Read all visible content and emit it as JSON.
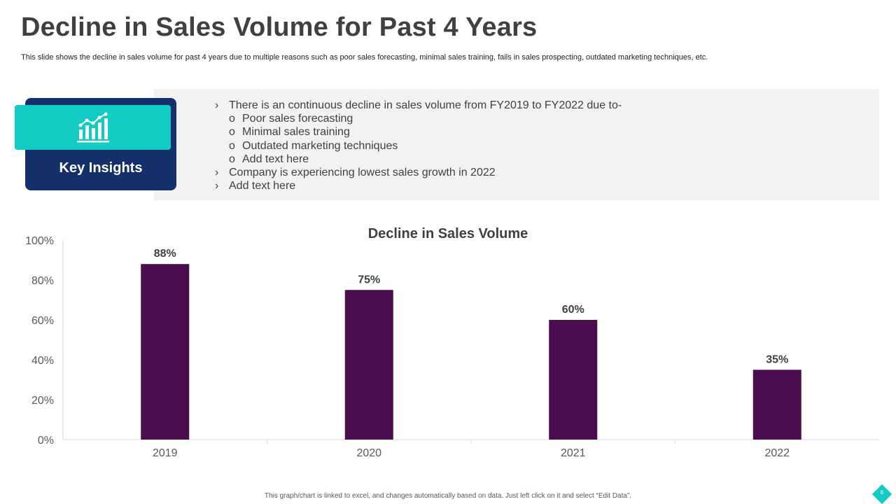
{
  "page": {
    "title": "Decline in Sales Volume for Past 4 Years",
    "subtitle": "This slide shows the decline in sales volume for past 4 years due to multiple reasons such as poor sales forecasting, minimal sales training, fails in sales prospecting, outdated marketing techniques, etc.",
    "footer_note": "This graph/chart is linked to excel, and changes automatically based on data. Just left click on it and select “Edit Data”.",
    "page_number": "6"
  },
  "key_insights": {
    "label": "Key Insights",
    "icon": "bar-chart-icon",
    "items": [
      {
        "level": 1,
        "bullet": "›",
        "text": "There is an continuous  decline in sales volume from FY2019 to FY2022 due to-"
      },
      {
        "level": 2,
        "bullet": "o",
        "text": "Poor sales forecasting"
      },
      {
        "level": 2,
        "bullet": "o",
        "text": "Minimal sales training"
      },
      {
        "level": 2,
        "bullet": "o",
        "text": "Outdated marketing techniques"
      },
      {
        "level": 2,
        "bullet": "o",
        "text": "Add text here"
      },
      {
        "level": 1,
        "bullet": "›",
        "text": "Company is experiencing lowest sales growth in 2022"
      },
      {
        "level": 1,
        "bullet": "›",
        "text": "Add text here"
      }
    ]
  },
  "colors": {
    "bar": "#4a0d4e",
    "navy": "#13306b",
    "teal": "#12ccc4",
    "panel": "#f2f2f2",
    "text": "#404040"
  },
  "chart_data": {
    "type": "bar",
    "title": "Decline in Sales Volume",
    "categories": [
      "2019",
      "2020",
      "2021",
      "2022"
    ],
    "values": [
      88,
      75,
      60,
      35
    ],
    "data_labels": [
      "88%",
      "75%",
      "60%",
      "35%"
    ],
    "yticks": [
      "0%",
      "20%",
      "40%",
      "60%",
      "80%",
      "100%"
    ],
    "ylim": [
      0,
      100
    ],
    "xlabel": "",
    "ylabel": "",
    "grid": false,
    "legend": "none"
  }
}
